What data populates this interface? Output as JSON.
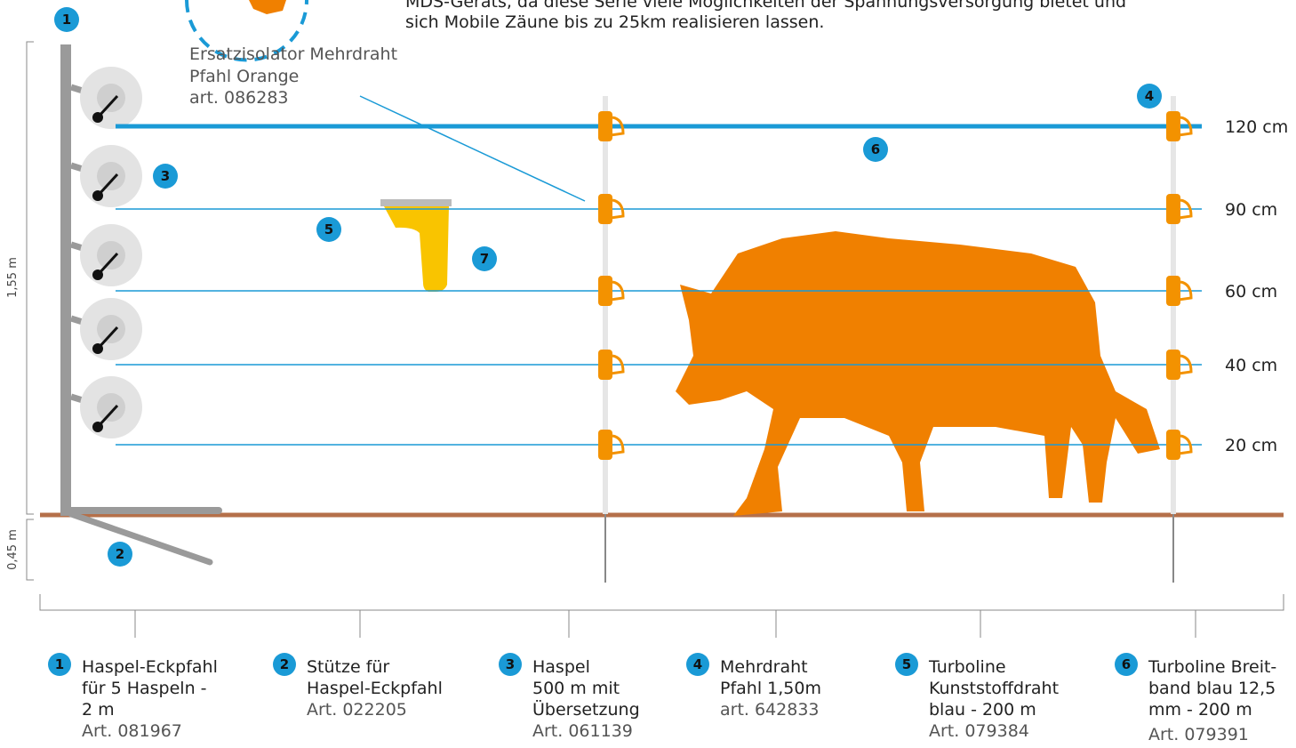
{
  "intro": [
    "MDS-Geräts, da diese Serie viele Möglichkeiten der Spannungsversorgung bietet und",
    "sich Mobile Zäune bis zu 25km realisieren lassen."
  ],
  "callout": {
    "title": [
      "Ersatzisolator Mehrdraht",
      "Pfahl Orange"
    ],
    "art": "art. 086283"
  },
  "dimensions": [
    "1,55 m",
    "0,45 m"
  ],
  "heights": [
    "120 cm",
    "90 cm",
    "60 cm",
    "40 cm",
    "20 cm"
  ],
  "markers": [
    "1",
    "2",
    "3",
    "4",
    "5",
    "6",
    "7"
  ],
  "legend": [
    {
      "number": "1",
      "lines": [
        "Haspel-Eckpfahl",
        "für 5 Haspeln -",
        "2 m"
      ],
      "art": "Art. 081967"
    },
    {
      "number": "2",
      "lines": [
        "Stütze für",
        "Haspel-Eckpfahl"
      ],
      "art": "Art. 022205"
    },
    {
      "number": "3",
      "lines": [
        "Haspel",
        "500 m mit",
        "Übersetzung"
      ],
      "art": "Art. 061139"
    },
    {
      "number": "4",
      "lines": [
        "Mehrdraht",
        "Pfahl 1,50m"
      ],
      "art": "art. 642833"
    },
    {
      "number": "5",
      "lines": [
        "Turboline",
        "Kunststoffdraht",
        "blau - 200 m"
      ],
      "art": "Art. 079384"
    },
    {
      "number": "6",
      "lines": [
        "Turboline Breit-",
        "band blau 12,5",
        "mm - 200 m"
      ],
      "art": "Art. 079391"
    }
  ]
}
